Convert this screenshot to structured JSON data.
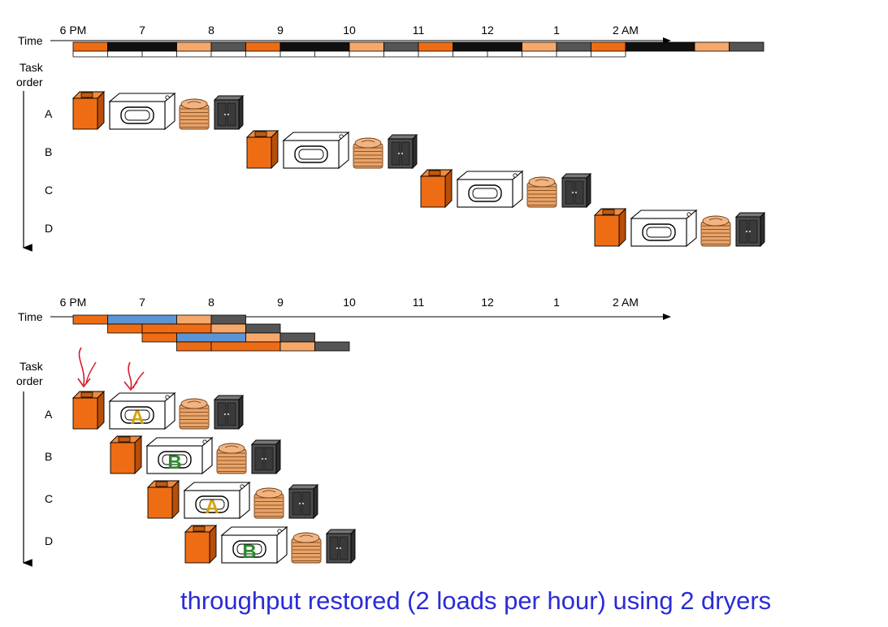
{
  "colors": {
    "wash": "#ee6d14",
    "dry": "#101010",
    "fold": "#f6a86b",
    "store": "#555555",
    "dryer2": "#5b95d6",
    "annotation": "#d81a2a",
    "caption": "#2b2bd6",
    "label_a": "#d4a20e",
    "label_b": "#2e8a2e"
  },
  "icons": [
    "washer-icon",
    "dryer-icon",
    "folded-clothes-icon",
    "wardrobe-icon"
  ],
  "top_diagram": {
    "time_label": "Time",
    "task_label_line1": "Task",
    "task_label_line2": "order",
    "ticks": [
      "6 PM",
      "7",
      "8",
      "9",
      "10",
      "11",
      "12",
      "1",
      "2 AM"
    ],
    "tasks": [
      "A",
      "B",
      "C",
      "D"
    ],
    "stage_sequence": [
      "wash",
      "dry",
      "fold",
      "store"
    ]
  },
  "bottom_diagram": {
    "time_label": "Time",
    "task_label_line1": "Task",
    "task_label_line2": "order",
    "ticks": [
      "6 PM",
      "7",
      "8",
      "9",
      "10",
      "11",
      "12",
      "1",
      "2 AM"
    ],
    "tasks": [
      "A",
      "B",
      "C",
      "D"
    ],
    "dryer_assignment": [
      "A",
      "B",
      "A",
      "B"
    ]
  },
  "caption": "throughput restored (2 loads per hour) using 2 dryers"
}
